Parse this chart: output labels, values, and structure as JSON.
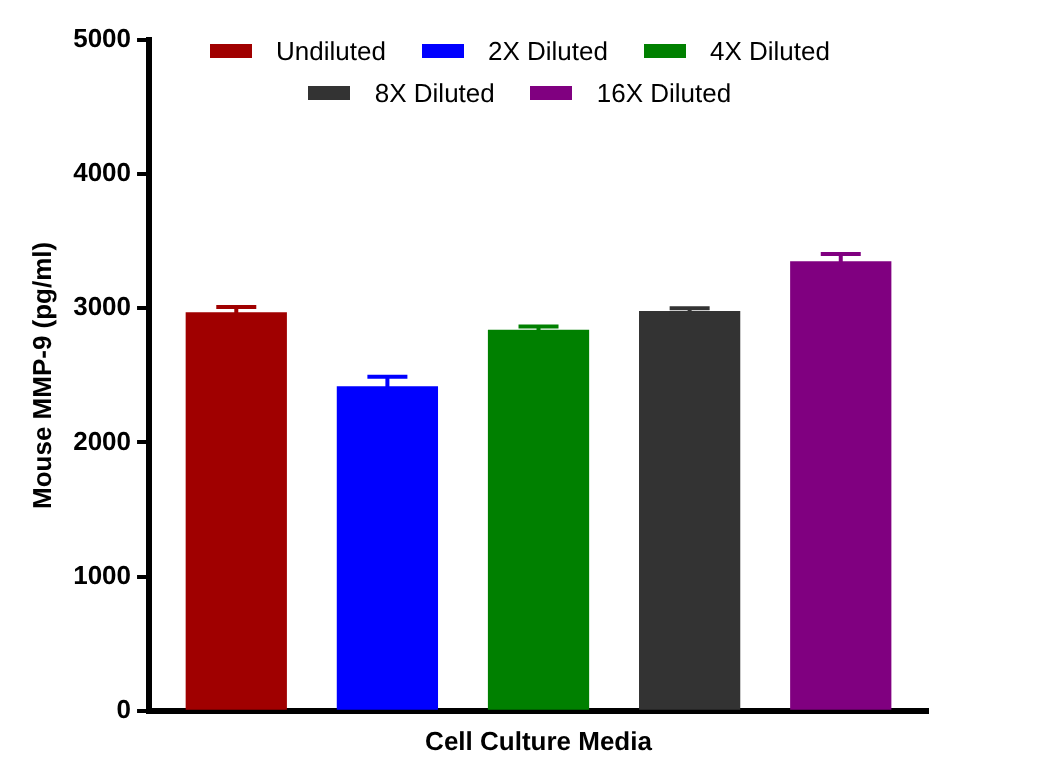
{
  "chart_data": {
    "type": "bar",
    "xlabel": "Cell Culture Media",
    "ylabel": "Mouse MMP-9 (pg/ml)",
    "categories": [
      null
    ],
    "series": [
      {
        "name": "Undiluted",
        "color": "#a00000",
        "values": [
          2970
        ],
        "errors": [
          40
        ]
      },
      {
        "name": "2X Diluted",
        "color": "#0000ff",
        "values": [
          2420
        ],
        "errors": [
          70
        ]
      },
      {
        "name": "4X Diluted",
        "color": "#008000",
        "values": [
          2840
        ],
        "errors": [
          25
        ]
      },
      {
        "name": "8X Diluted",
        "color": "#333333",
        "values": [
          2980
        ],
        "errors": [
          20
        ]
      },
      {
        "name": "16X Diluted",
        "color": "#800080",
        "values": [
          3350
        ],
        "errors": [
          55
        ]
      }
    ],
    "ylim": [
      0,
      5000
    ],
    "yticks": [
      0,
      1000,
      2000,
      3000,
      4000,
      5000
    ],
    "grid": false,
    "legend": "top",
    "tick_labels": "y"
  }
}
